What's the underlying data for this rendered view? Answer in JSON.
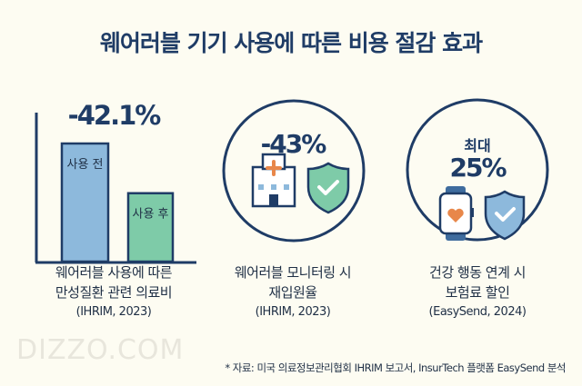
{
  "title": "웨어러블 기기 사용에 따른 비용 절감 효과",
  "colors": {
    "navy": "#1f3c66",
    "bar_before": "#8db9dc",
    "bar_after": "#7ecba8",
    "accent_orange": "#e8874a",
    "background": "#fdfcf2"
  },
  "chart_data": {
    "type": "bar",
    "categories": [
      "사용 전",
      "사용 후"
    ],
    "values": [
      100,
      57.9
    ],
    "annotation": "-42.1%",
    "title": "",
    "xlabel": "",
    "ylabel": "",
    "grid": false
  },
  "stats": [
    {
      "value": "-42.1%",
      "caption": [
        "웨어러블 사용에 따른",
        "만성질환 관련 의료비"
      ],
      "source": "(IHRIM, 2023)"
    },
    {
      "value": "-43%",
      "caption": [
        "웨어러블 모니터링 시",
        "재입원율"
      ],
      "source": "(IHRIM, 2023)",
      "icons": [
        "hospital-icon",
        "shield-check-icon"
      ]
    },
    {
      "prefix": "최대",
      "value": "25%",
      "caption": [
        "건강 행동 연계 시",
        "보험료 할인"
      ],
      "source": "(EasySend, 2024)",
      "icons": [
        "smartwatch-heart-icon",
        "shield-check-icon"
      ]
    }
  ],
  "watermark": "DIZZO.COM",
  "footnote": "* 자료: 미국 의료정보관리협회 IHRIM 보고서, InsurTech 플랫폼 EasySend 분석"
}
